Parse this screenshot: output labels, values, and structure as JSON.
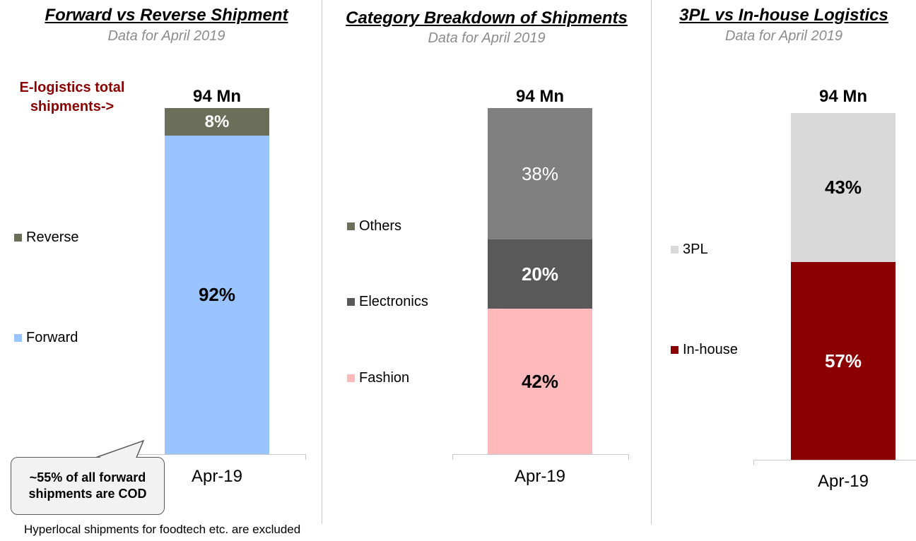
{
  "chart_data": [
    {
      "type": "bar",
      "stacked": true,
      "title": "Forward vs Reverse Shipment",
      "subtitle": "Data for April 2019",
      "categories": [
        "Apr-19"
      ],
      "total_label": "94 Mn",
      "series": [
        {
          "name": "Forward",
          "values": [
            92
          ],
          "label": "92%",
          "color": "#99c4ff"
        },
        {
          "name": "Reverse",
          "values": [
            8
          ],
          "label": "8%",
          "color": "#6b6e58"
        }
      ],
      "legend_order": [
        "Reverse",
        "Forward"
      ],
      "annotation_left": "E-logistics total shipments->",
      "callout": "~55% of all forward shipments are COD"
    },
    {
      "type": "bar",
      "stacked": true,
      "title": "Category Breakdown of Shipments",
      "subtitle": "Data for April 2019",
      "categories": [
        "Apr-19"
      ],
      "total_label": "94 Mn",
      "series": [
        {
          "name": "Fashion",
          "values": [
            42
          ],
          "label": "42%",
          "color": "#ffb9ba"
        },
        {
          "name": "Electronics",
          "values": [
            20
          ],
          "label": "20%",
          "color": "#595959"
        },
        {
          "name": "Others",
          "values": [
            38
          ],
          "label": "38%",
          "color": "#808080"
        }
      ],
      "legend_order": [
        "Others",
        "Electronics",
        "Fashion"
      ],
      "legend_colors": {
        "Others": "#6b6e58",
        "Electronics": "#595959",
        "Fashion": "#ffb9ba"
      }
    },
    {
      "type": "bar",
      "stacked": true,
      "title": "3PL vs In-house Logistics",
      "subtitle": "Data for April 2019",
      "categories": [
        "Apr-19"
      ],
      "total_label": "94 Mn",
      "series": [
        {
          "name": "In-house",
          "values": [
            57
          ],
          "label": "57%",
          "color": "#8b0000"
        },
        {
          "name": "3PL",
          "values": [
            43
          ],
          "label": "43%",
          "color": "#d9d9d9"
        }
      ],
      "legend_order": [
        "3PL",
        "In-house"
      ]
    }
  ],
  "footnote": "Hyperlocal shipments for foodtech etc. are excluded",
  "colors": {
    "title_text": "#000000",
    "subtitle_text": "#8c8c8c",
    "accent_dark_red": "#8b0000",
    "divider": "#c8c8c8"
  }
}
